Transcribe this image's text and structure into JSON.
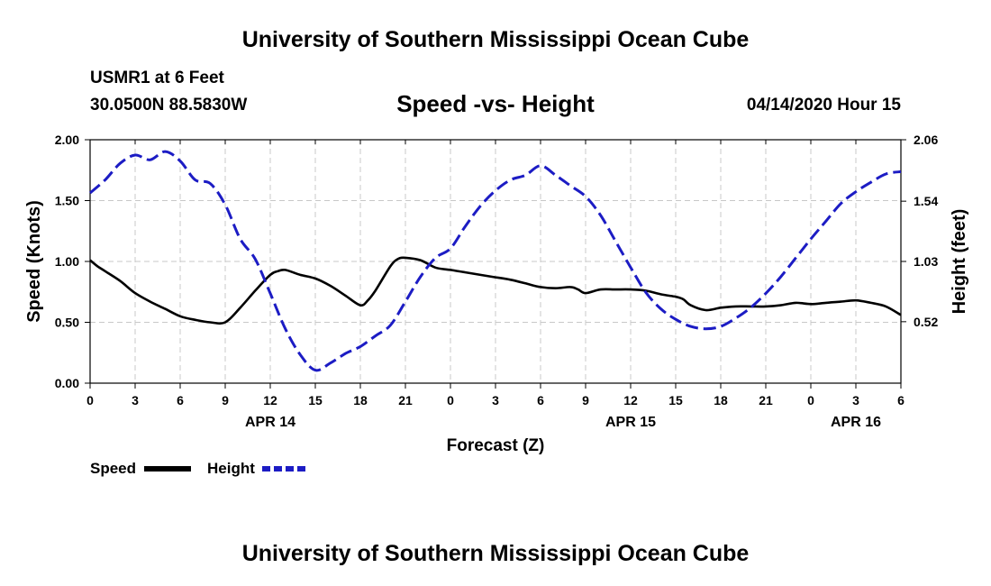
{
  "header": {
    "title": "University of Southern Mississippi Ocean Cube",
    "station": "USMR1 at 6 Feet",
    "coords": "30.0500N 88.5830W",
    "subtitle": "Speed -vs- Height",
    "datetime": "04/14/2020 Hour 15"
  },
  "footer": {
    "title": "University of Southern Mississippi Ocean Cube"
  },
  "chart_data": {
    "type": "line",
    "xlabel": "Forecast (Z)",
    "ylabel_left": "Speed (Knots)",
    "ylabel_right": "Height (feet)",
    "x_range": [
      0,
      54
    ],
    "x_tick_positions": [
      0,
      3,
      6,
      9,
      12,
      15,
      18,
      21,
      24,
      27,
      30,
      33,
      36,
      39,
      42,
      45,
      48,
      51,
      54
    ],
    "x_tick_labels": [
      "0",
      "3",
      "6",
      "9",
      "12",
      "15",
      "18",
      "21",
      "0",
      "3",
      "6",
      "9",
      "12",
      "15",
      "18",
      "21",
      "0",
      "3",
      "6"
    ],
    "date_labels": [
      {
        "label": "APR 14",
        "x": 12
      },
      {
        "label": "APR 15",
        "x": 36
      },
      {
        "label": "APR 16",
        "x": 51
      }
    ],
    "ylim_left": [
      0,
      2.0
    ],
    "yticks_left": [
      0.0,
      0.5,
      1.0,
      1.5,
      2.0
    ],
    "ytick_labels_left": [
      "0.00",
      "0.50",
      "1.00",
      "1.50",
      "2.00"
    ],
    "ylim_right": [
      0,
      2.06
    ],
    "yticks_right": [
      0.52,
      1.03,
      1.54,
      2.06
    ],
    "ytick_labels_right": [
      "0.52",
      "1.03",
      "1.54",
      "2.06"
    ],
    "grid": true,
    "series": [
      {
        "name": "Speed",
        "axis": "left",
        "color": "#000000",
        "dash": "solid",
        "x": [
          0,
          0.5,
          1,
          2,
          3,
          4,
          5,
          6,
          7,
          8,
          9,
          10,
          11,
          12,
          12.5,
          13,
          14,
          15,
          16,
          17,
          18,
          18.5,
          19,
          20,
          20.5,
          21,
          22,
          23,
          24,
          25,
          26,
          27,
          28,
          29,
          30,
          31,
          32,
          32.5,
          33,
          34,
          35,
          36,
          37,
          38,
          39,
          39.5,
          40,
          41,
          42,
          43,
          44,
          45,
          46,
          47,
          48,
          49,
          50,
          51,
          52,
          53,
          54
        ],
        "y": [
          1.01,
          0.96,
          0.92,
          0.84,
          0.74,
          0.67,
          0.61,
          0.55,
          0.52,
          0.5,
          0.5,
          0.62,
          0.76,
          0.89,
          0.92,
          0.93,
          0.89,
          0.86,
          0.8,
          0.72,
          0.64,
          0.68,
          0.76,
          0.96,
          1.02,
          1.03,
          1.01,
          0.95,
          0.93,
          0.91,
          0.89,
          0.87,
          0.85,
          0.82,
          0.79,
          0.78,
          0.79,
          0.77,
          0.74,
          0.77,
          0.77,
          0.77,
          0.76,
          0.73,
          0.71,
          0.69,
          0.64,
          0.6,
          0.62,
          0.63,
          0.63,
          0.63,
          0.64,
          0.66,
          0.65,
          0.66,
          0.67,
          0.68,
          0.66,
          0.63,
          0.56
        ]
      },
      {
        "name": "Height",
        "axis": "right",
        "color": "#1c1cc4",
        "dash": "dashed",
        "x": [
          0,
          1,
          2,
          3,
          4,
          5,
          6,
          7,
          8,
          9,
          10,
          11,
          12,
          13,
          14,
          15,
          16,
          17,
          18,
          19,
          20,
          21,
          22,
          23,
          24,
          25,
          26,
          27,
          28,
          29,
          30,
          31,
          32,
          33,
          34,
          35,
          36,
          37,
          38,
          39,
          40,
          41,
          42,
          43,
          44,
          45,
          46,
          47,
          48,
          49,
          50,
          51,
          52,
          53,
          54
        ],
        "y": [
          1.61,
          1.72,
          1.86,
          1.93,
          1.89,
          1.96,
          1.88,
          1.72,
          1.69,
          1.51,
          1.22,
          1.05,
          0.76,
          0.46,
          0.24,
          0.11,
          0.17,
          0.25,
          0.31,
          0.4,
          0.49,
          0.69,
          0.9,
          1.06,
          1.14,
          1.33,
          1.5,
          1.63,
          1.72,
          1.76,
          1.84,
          1.76,
          1.67,
          1.58,
          1.42,
          1.2,
          0.98,
          0.77,
          0.63,
          0.54,
          0.48,
          0.46,
          0.48,
          0.55,
          0.64,
          0.76,
          0.9,
          1.06,
          1.22,
          1.37,
          1.52,
          1.62,
          1.7,
          1.77,
          1.79
        ]
      }
    ],
    "legend": [
      {
        "label": "Speed",
        "color": "#000000",
        "dash": "solid"
      },
      {
        "label": "Height",
        "color": "#1c1cc4",
        "dash": "dashed"
      }
    ],
    "legend_position": "bottom-left"
  }
}
